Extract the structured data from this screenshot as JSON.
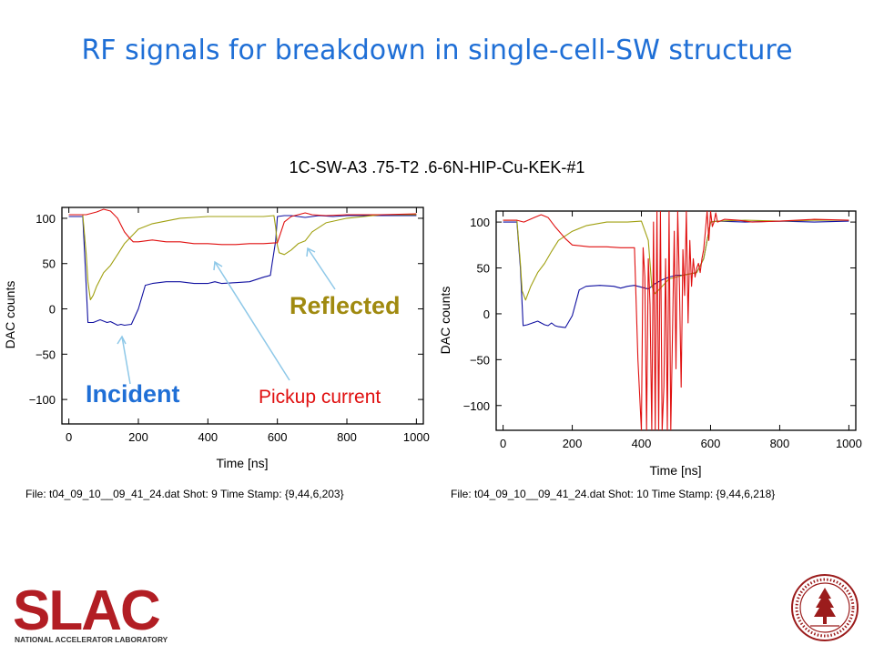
{
  "title": "RF signals for breakdown in single-cell-SW structure",
  "subtitle": "1C-SW-A3 .75-T2 .6-6N-HIP-Cu-KEK-#1",
  "captions": {
    "left": "File: t04_09_10__09_41_24.dat  Shot: 9  Time Stamp: {9,44,6,203}",
    "right": "File: t04_09_10__09_41_24.dat   Shot: 10   Time Stamp: {9,44,6,218}"
  },
  "logos": {
    "slac": "SLAC",
    "slac_sub": "NATIONAL ACCELERATOR LABORATORY"
  },
  "colors": {
    "title": "#1f6fd6",
    "incident": "#1010a0",
    "reflected": "#a0a010",
    "pickup": "#e01010",
    "annotation_arrow": "#8ec8e8"
  },
  "annotations": {
    "incident": "Incident",
    "reflected": "Reflected",
    "pickup": "Pickup current"
  },
  "chart_data": [
    {
      "type": "line",
      "xlabel": "Time  [ns]",
      "ylabel": "DAC counts",
      "xlim": [
        -20,
        1020
      ],
      "ylim": [
        -127,
        112
      ],
      "xticks": [
        0,
        200,
        400,
        600,
        800,
        1000
      ],
      "yticks": [
        -100,
        -50,
        0,
        50,
        100
      ],
      "series": [
        {
          "name": "Incident",
          "color": "#1010a0",
          "x": [
            0,
            40,
            48,
            55,
            70,
            90,
            110,
            120,
            140,
            150,
            160,
            180,
            200,
            220,
            240,
            280,
            320,
            360,
            400,
            420,
            440,
            480,
            520,
            560,
            580,
            585,
            595,
            600,
            620,
            640,
            680,
            720,
            760,
            800,
            900,
            1000
          ],
          "y": [
            102,
            102,
            40,
            -15,
            -15,
            -12,
            -15,
            -14,
            -18,
            -17,
            -18,
            -17,
            0,
            26,
            28,
            30,
            30,
            28,
            28,
            30,
            28,
            29,
            30,
            35,
            37,
            50,
            75,
            102,
            103,
            103,
            101,
            103,
            102,
            103,
            103,
            103
          ]
        },
        {
          "name": "Reflected",
          "color": "#a0a010",
          "x": [
            0,
            40,
            50,
            55,
            62,
            70,
            80,
            100,
            120,
            140,
            160,
            180,
            200,
            240,
            280,
            320,
            360,
            400,
            440,
            480,
            520,
            560,
            590,
            595,
            600,
            605,
            620,
            640,
            660,
            680,
            700,
            740,
            800,
            900,
            1000
          ],
          "y": [
            104,
            104,
            60,
            30,
            10,
            15,
            25,
            40,
            48,
            60,
            72,
            80,
            88,
            94,
            97,
            100,
            101,
            102,
            102,
            102,
            102,
            102,
            103,
            90,
            70,
            62,
            60,
            65,
            72,
            75,
            85,
            95,
            100,
            104,
            104
          ]
        },
        {
          "name": "Pickup current",
          "color": "#e01010",
          "x": [
            0,
            50,
            80,
            100,
            120,
            140,
            160,
            175,
            185,
            200,
            240,
            280,
            320,
            360,
            400,
            440,
            480,
            520,
            560,
            600,
            620,
            640,
            680,
            700,
            740,
            800,
            900,
            1000
          ],
          "y": [
            104,
            104,
            107,
            110,
            108,
            100,
            85,
            78,
            74,
            74,
            76,
            74,
            74,
            72,
            72,
            71,
            71,
            72,
            72,
            73,
            96,
            102,
            106,
            104,
            103,
            104,
            104,
            105
          ]
        }
      ]
    },
    {
      "type": "line",
      "xlabel": "Time  [ns]",
      "ylabel": "DAC counts",
      "xlim": [
        -20,
        1020
      ],
      "ylim": [
        -127,
        112
      ],
      "xticks": [
        0,
        200,
        400,
        600,
        800,
        1000
      ],
      "yticks": [
        -100,
        -50,
        0,
        50,
        100
      ],
      "series": [
        {
          "name": "Incident",
          "color": "#1010a0",
          "x": [
            0,
            40,
            50,
            58,
            70,
            100,
            120,
            130,
            140,
            150,
            160,
            180,
            200,
            220,
            240,
            280,
            320,
            340,
            360,
            380,
            400,
            420,
            440,
            460,
            480,
            500,
            520,
            560,
            580,
            600,
            620,
            700,
            800,
            900,
            1000
          ],
          "y": [
            100,
            100,
            50,
            -13,
            -12,
            -8,
            -12,
            -13,
            -10,
            -13,
            -14,
            -15,
            -2,
            26,
            30,
            31,
            30,
            28,
            30,
            31,
            29,
            27,
            33,
            37,
            40,
            42,
            42,
            45,
            60,
            100,
            101,
            100,
            101,
            100,
            101
          ]
        },
        {
          "name": "Reflected",
          "color": "#a0a010",
          "x": [
            0,
            40,
            50,
            55,
            65,
            80,
            100,
            120,
            140,
            160,
            200,
            240,
            300,
            360,
            400,
            420,
            430,
            440,
            460,
            480,
            520,
            560,
            580,
            600,
            620,
            700,
            800,
            900,
            1000
          ],
          "y": [
            102,
            102,
            55,
            25,
            15,
            30,
            45,
            55,
            68,
            80,
            90,
            96,
            100,
            100,
            101,
            80,
            30,
            22,
            30,
            38,
            42,
            45,
            60,
            100,
            101,
            102,
            101,
            102,
            102
          ]
        },
        {
          "name": "Pickup current",
          "color": "#e01010",
          "x": [
            0,
            40,
            60,
            90,
            110,
            130,
            150,
            180,
            200,
            250,
            300,
            340,
            380,
            390,
            400,
            405,
            410,
            415,
            420,
            425,
            430,
            435,
            440,
            445,
            450,
            455,
            460,
            465,
            470,
            475,
            480,
            485,
            490,
            495,
            500,
            505,
            510,
            515,
            520,
            525,
            530,
            535,
            540,
            545,
            550,
            555,
            560,
            565,
            570,
            575,
            580,
            585,
            590,
            595,
            600,
            605,
            610,
            615,
            620,
            640,
            680,
            720,
            800,
            900,
            1000
          ],
          "y": [
            102,
            102,
            100,
            105,
            108,
            105,
            95,
            82,
            75,
            73,
            73,
            72,
            72,
            -50,
            -127,
            72,
            40,
            -127,
            60,
            10,
            -127,
            100,
            -127,
            112,
            -127,
            112,
            -127,
            -80,
            60,
            -127,
            112,
            -127,
            -20,
            90,
            -60,
            112,
            30,
            -80,
            70,
            20,
            112,
            -10,
            80,
            30,
            60,
            40,
            50,
            55,
            45,
            60,
            70,
            90,
            112,
            80,
            112,
            95,
            100,
            110,
            100,
            103,
            102,
            100,
            101,
            103,
            102
          ]
        }
      ]
    }
  ]
}
